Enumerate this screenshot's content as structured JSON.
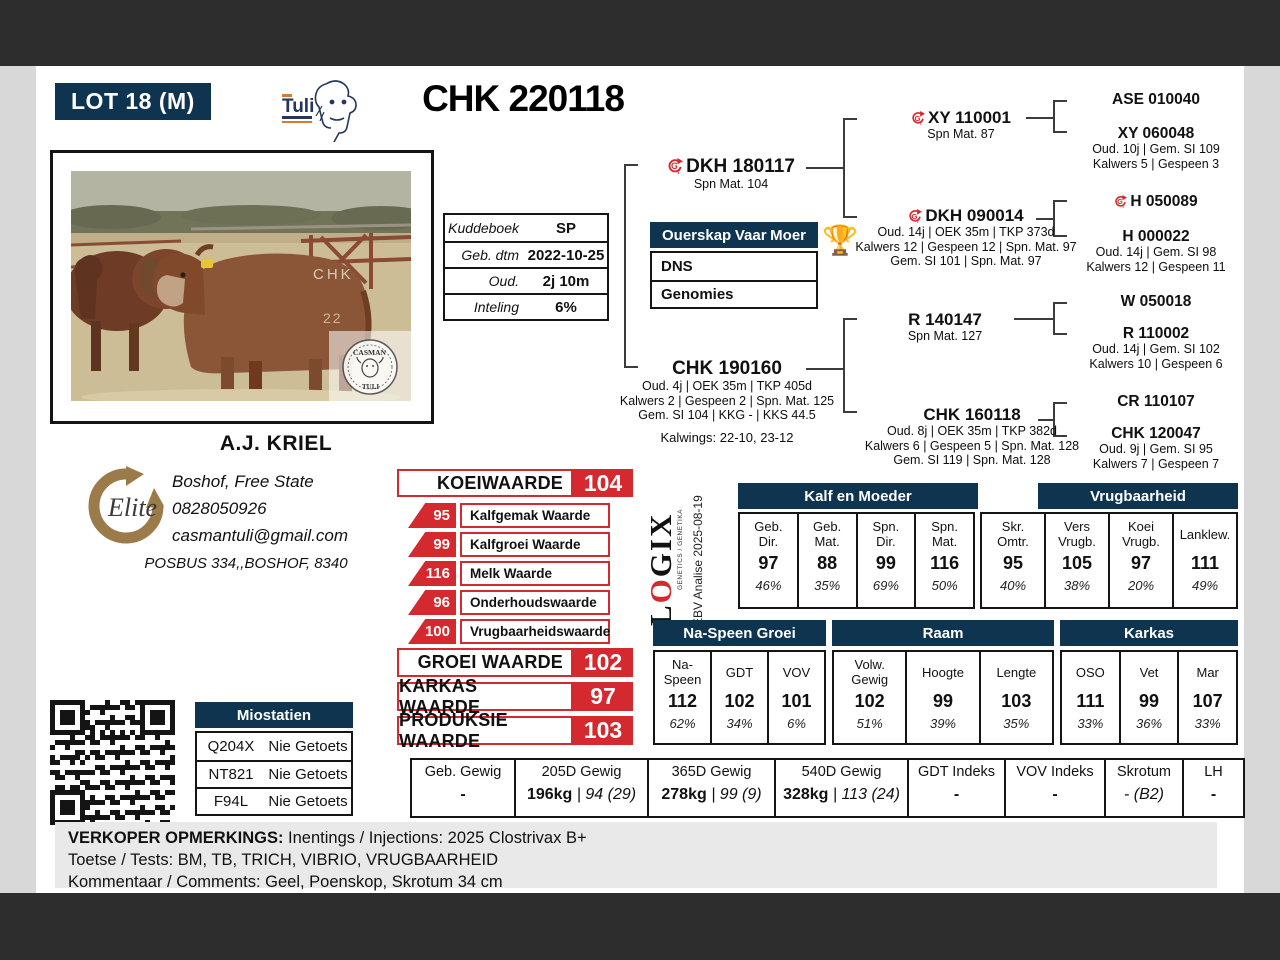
{
  "header": {
    "lot": "LOT 18 (M)",
    "title": "CHK 220118",
    "tuli_wordmark": "Tuli"
  },
  "info_table": {
    "rows": [
      {
        "label": "Kuddeboek",
        "value": "SP"
      },
      {
        "label": "Geb. dtm",
        "value": "2022-10-25"
      },
      {
        "label": "Oud.",
        "value": "2j 10m"
      },
      {
        "label": "Inteling",
        "value": "6%"
      }
    ]
  },
  "ouerskap": {
    "header": [
      "Ouerskap",
      "Vaar",
      "Moer"
    ],
    "rows": [
      "DNS",
      "Genomies"
    ],
    "trophy": "🏆"
  },
  "owner": {
    "name": "A.J. KRIEL",
    "location": "Boshof, Free State",
    "phone": "0828050926",
    "email": "casmantuli@gmail.com",
    "address": "POSBUS 334,,BOSHOF, 8340",
    "elite_label": "Elite"
  },
  "photo": {
    "brand": "CHK",
    "brand2": "22",
    "stamp_top": "CASMAN",
    "stamp_bottom": "TULI"
  },
  "pedigree": {
    "sire": {
      "id": "DKH 180117",
      "gt": true,
      "lines": [
        "Spn Mat. 104"
      ]
    },
    "sire_sire": {
      "id": "XY 110001",
      "gt": true,
      "lines": [
        "Spn Mat. 87"
      ]
    },
    "sire_sire_sire": {
      "id": "ASE 010040"
    },
    "sire_sire_dam": {
      "id": "XY 060048",
      "lines": [
        "Oud. 10j | Gem. SI 109",
        "Kalwers 5 | Gespeen 3"
      ]
    },
    "sire_dam": {
      "id": "DKH 090014",
      "gt": true,
      "lines": [
        "Oud. 14j | OEK 35m | TKP 373d",
        "Kalwers 12 | Gespeen 12 | Spn. Mat. 97",
        "Gem. SI 101 | Spn. Mat. 97"
      ]
    },
    "sire_dam_sire": {
      "id": "H 050089",
      "gt": true
    },
    "sire_dam_dam": {
      "id": "H 000022",
      "lines": [
        "Oud. 14j | Gem. SI 98",
        "Kalwers 12 | Gespeen 11"
      ]
    },
    "dam": {
      "id": "CHK 190160",
      "lines": [
        "Oud. 4j | OEK 35m | TKP 405d",
        "Kalwers 2 | Gespeen 2 | Spn. Mat. 125",
        "Gem. SI 104 | KKG - | KKS 44.5"
      ],
      "extra": "Kalwings: 22-10, 23-12"
    },
    "dam_sire": {
      "id": "R 140147",
      "lines": [
        "Spn Mat. 127"
      ]
    },
    "dam_sire_sire": {
      "id": "W 050018"
    },
    "dam_sire_dam": {
      "id": "R 110002",
      "lines": [
        "Oud. 14j | Gem. SI 102",
        "Kalwers 10 | Gespeen 6"
      ]
    },
    "dam_dam": {
      "id": "CHK 160118",
      "lines": [
        "Oud. 8j | OEK 35m | TKP 382d",
        "Kalwers 6 | Gespeen 5 | Spn. Mat. 128",
        "Gem. SI 119 | Spn. Mat. 128"
      ]
    },
    "dam_dam_sire": {
      "id": "CR 110107"
    },
    "dam_dam_dam": {
      "id": "CHK 120047",
      "lines": [
        "Oud. 9j | Gem. SI 95",
        "Kalwers 7 | Gespeen 7"
      ]
    }
  },
  "values": {
    "koei": {
      "label": "KOEIWAARDE",
      "value": "104"
    },
    "sub": [
      {
        "value": "95",
        "label": "Kalfgemak Waarde"
      },
      {
        "value": "99",
        "label": "Kalfgroei Waarde"
      },
      {
        "value": "116",
        "label": "Melk Waarde"
      },
      {
        "value": "96",
        "label": "Onderhoudswaarde"
      },
      {
        "value": "100",
        "label": "Vrugbaarheidswaarde"
      }
    ],
    "groei": {
      "label": "GROEI WAARDE",
      "value": "102"
    },
    "karkas": {
      "label": "KARKAS WAARDE",
      "value": "97"
    },
    "produksie": {
      "label": "PRODUKSIE WAARDE",
      "value": "103"
    }
  },
  "logix": {
    "word_pre": "L",
    "word_o": "O",
    "word_post": "GIX",
    "tagline": "GENETICS / GENETIKA",
    "analysis": "EBV Analise 2025-08-19"
  },
  "ebv": {
    "groups": [
      {
        "title": "Kalf en Moeder",
        "cols": [
          {
            "l1": "Geb.",
            "l2": "Dir.",
            "v": "97",
            "acc": "46%"
          },
          {
            "l1": "Geb.",
            "l2": "Mat.",
            "v": "88",
            "acc": "35%"
          },
          {
            "l1": "Spn.",
            "l2": "Dir.",
            "v": "99",
            "acc": "69%"
          },
          {
            "l1": "Spn.",
            "l2": "Mat.",
            "v": "116",
            "acc": "50%"
          }
        ]
      },
      {
        "title": "Vrugbaarheid",
        "cols": [
          {
            "l1": "Skr.",
            "l2": "Omtr.",
            "v": "95",
            "acc": "40%"
          },
          {
            "l1": "Vers",
            "l2": "Vrugb.",
            "v": "105",
            "acc": "38%"
          },
          {
            "l1": "Koei",
            "l2": "Vrugb.",
            "v": "97",
            "acc": "20%"
          },
          {
            "l1": "Lanklew.",
            "l2": "",
            "v": "111",
            "acc": "49%"
          }
        ]
      },
      {
        "title": "Na-Speen Groei",
        "cols": [
          {
            "l1": "Na-",
            "l2": "Speen",
            "v": "112",
            "acc": "62%"
          },
          {
            "l1": "GDT",
            "l2": "",
            "v": "102",
            "acc": "34%"
          },
          {
            "l1": "VOV",
            "l2": "",
            "v": "101",
            "acc": "6%"
          }
        ]
      },
      {
        "title": "Raam",
        "cols": [
          {
            "l1": "Volw.",
            "l2": "Gewig",
            "v": "102",
            "acc": "51%"
          },
          {
            "l1": "Hoogte",
            "l2": "",
            "v": "99",
            "acc": "39%"
          },
          {
            "l1": "Lengte",
            "l2": "",
            "v": "103",
            "acc": "35%"
          }
        ]
      },
      {
        "title": "Karkas",
        "cols": [
          {
            "l1": "OSO",
            "l2": "",
            "v": "111",
            "acc": "33%"
          },
          {
            "l1": "Vet",
            "l2": "",
            "v": "99",
            "acc": "36%"
          },
          {
            "l1": "Mar",
            "l2": "",
            "v": "107",
            "acc": "33%"
          }
        ]
      }
    ]
  },
  "miostatien": {
    "title": "Miostatien",
    "rows": [
      {
        "gene": "Q204X",
        "result": "Nie Getoets"
      },
      {
        "gene": "NT821",
        "result": "Nie Getoets"
      },
      {
        "gene": "F94L",
        "result": "Nie Getoets"
      }
    ]
  },
  "weights": {
    "cols": [
      {
        "label": "Geb. Gewig",
        "bold": "-",
        "extra": ""
      },
      {
        "label": "205D Gewig",
        "bold": "196kg",
        "extra": "| 94 (29)"
      },
      {
        "label": "365D Gewig",
        "bold": "278kg",
        "extra": "| 99 (9)"
      },
      {
        "label": "540D Gewig",
        "bold": "328kg",
        "extra": "| 113 (24)"
      },
      {
        "label": "GDT Indeks",
        "bold": "-",
        "extra": ""
      },
      {
        "label": "VOV Indeks",
        "bold": "-",
        "extra": ""
      },
      {
        "label": "Skrotum",
        "bold": "",
        "extra": "- (B2)"
      },
      {
        "label": "LH",
        "bold": "-",
        "extra": ""
      }
    ]
  },
  "comments": {
    "heading": "VERKOPER OPMERKINGS:",
    "line1": "Inentings / Injections: 2025 Clostrivax B+",
    "line2": "Toetse / Tests: BM, TB, TRICH, VIBRIO, VRUGBAARHEID",
    "line3": "Kommentaar / Comments: Geel, Poenskop, Skrotum 34 cm"
  },
  "colors": {
    "navy": "#0e3450",
    "red": "#d4292f",
    "band": "#2d2d2d"
  }
}
